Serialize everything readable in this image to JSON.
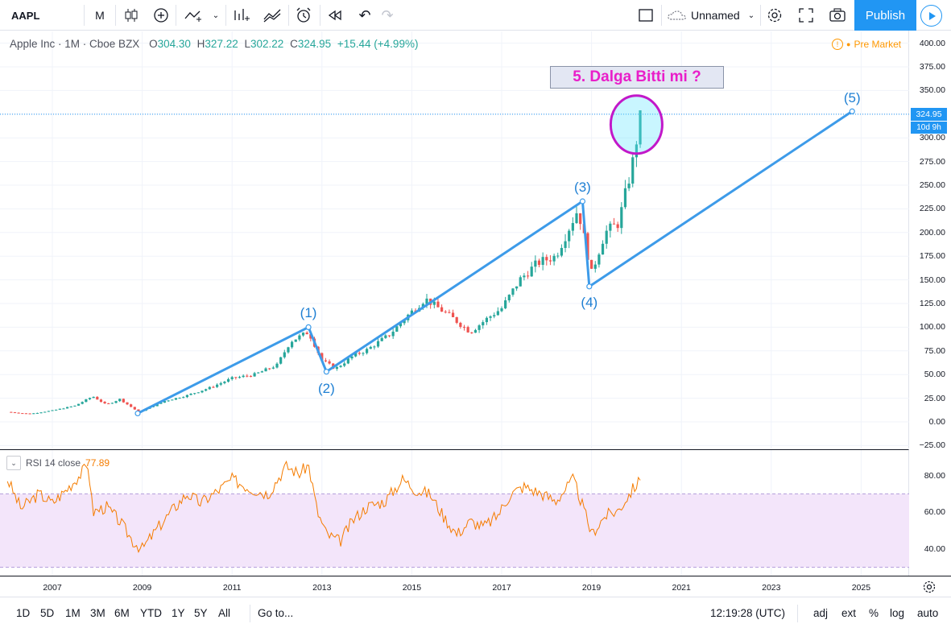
{
  "toolbar": {
    "symbol": "AAPL",
    "interval": "M",
    "layout_name": "Unnamed",
    "publish_label": "Publish",
    "icons": [
      "candles-icon",
      "plus-circle-icon",
      "indicator-icon",
      "chevron-down-icon",
      "bar-chart-icon",
      "compare-icon",
      "alert-icon",
      "replay-icon",
      "undo-icon",
      "redo-icon",
      "layout-square-icon",
      "cloud-icon",
      "gear-icon",
      "fullscreen-icon",
      "camera-icon",
      "play-icon"
    ]
  },
  "legend": {
    "title": "Apple Inc · 1M · Cboe BZX",
    "open_label": "O",
    "open": "304.30",
    "high_label": "H",
    "high": "327.22",
    "low_label": "L",
    "low": "302.22",
    "close_label": "C",
    "close": "324.95",
    "change": "+15.44 (+4.99%)",
    "pre_market": "Pre Market"
  },
  "annotation": {
    "text": "5. Dalga Bitti mi ?",
    "waves": [
      "(1)",
      "(2)",
      "(3)",
      "(4)",
      "(5)"
    ]
  },
  "price_tag": {
    "price": "324.95",
    "countdown": "10d 9h"
  },
  "y_axis": [
    "400.00",
    "375.00",
    "350.00",
    "325.00",
    "300.00",
    "275.00",
    "250.00",
    "225.00",
    "200.00",
    "175.00",
    "150.00",
    "125.00",
    "100.00",
    "75.00",
    "50.00",
    "25.00",
    "0.00",
    "−25.00"
  ],
  "rsi": {
    "label": "RSI 14 close",
    "value": "77.89",
    "y_axis": [
      "80.00",
      "60.00",
      "40.00"
    ],
    "band_top": 70,
    "band_bottom": 30
  },
  "x_axis": [
    "2007",
    "2009",
    "2011",
    "2013",
    "2015",
    "2017",
    "2019",
    "2021",
    "2023",
    "2025"
  ],
  "bottom_bar": {
    "ranges": [
      "1D",
      "5D",
      "1M",
      "3M",
      "6M",
      "YTD",
      "1Y",
      "5Y",
      "All"
    ],
    "goto": "Go to...",
    "clock": "12:19:28 (UTC)",
    "options": [
      "adj",
      "ext",
      "%",
      "log",
      "auto"
    ]
  },
  "colors": {
    "up": "#26a69a",
    "down": "#ef5350",
    "accent": "#2196f3",
    "rsi": "#f57c00",
    "annotation": "#e91ec9"
  },
  "chart_data": {
    "type": "candlestick",
    "x_range": [
      2005.9,
      2026.3
    ],
    "price_range": [
      -30,
      410
    ],
    "monthly_close_approx": [
      [
        2006.0,
        10.5
      ],
      [
        2006.5,
        8.5
      ],
      [
        2007.0,
        12
      ],
      [
        2007.5,
        17
      ],
      [
        2007.9,
        27
      ],
      [
        2008.2,
        18
      ],
      [
        2008.5,
        24
      ],
      [
        2008.9,
        11
      ],
      [
        2009.0,
        12
      ],
      [
        2009.5,
        22
      ],
      [
        2010.0,
        28
      ],
      [
        2010.5,
        36
      ],
      [
        2011.0,
        46
      ],
      [
        2011.5,
        50
      ],
      [
        2012.0,
        60
      ],
      [
        2012.3,
        85
      ],
      [
        2012.7,
        95
      ],
      [
        2013.0,
        65
      ],
      [
        2013.3,
        56
      ],
      [
        2013.7,
        70
      ],
      [
        2014.0,
        76
      ],
      [
        2014.5,
        92
      ],
      [
        2014.9,
        112
      ],
      [
        2015.3,
        130
      ],
      [
        2015.6,
        120
      ],
      [
        2015.9,
        110
      ],
      [
        2016.3,
        95
      ],
      [
        2016.7,
        110
      ],
      [
        2017.0,
        120
      ],
      [
        2017.4,
        150
      ],
      [
        2017.8,
        168
      ],
      [
        2018.2,
        175
      ],
      [
        2018.7,
        225
      ],
      [
        2018.9,
        180
      ],
      [
        2019.0,
        157
      ],
      [
        2019.3,
        200
      ],
      [
        2019.6,
        210
      ],
      [
        2019.9,
        270
      ],
      [
        2020.1,
        325
      ]
    ],
    "rsi_approx": [
      [
        2006.0,
        78
      ],
      [
        2006.3,
        62
      ],
      [
        2006.7,
        70
      ],
      [
        2007.0,
        65
      ],
      [
        2007.3,
        72
      ],
      [
        2007.6,
        80
      ],
      [
        2007.8,
        86
      ],
      [
        2007.9,
        60
      ],
      [
        2008.2,
        63
      ],
      [
        2008.5,
        55
      ],
      [
        2008.8,
        44
      ],
      [
        2009.0,
        40
      ],
      [
        2009.3,
        50
      ],
      [
        2009.7,
        62
      ],
      [
        2010.0,
        70
      ],
      [
        2010.3,
        65
      ],
      [
        2010.7,
        72
      ],
      [
        2011.0,
        78
      ],
      [
        2011.4,
        73
      ],
      [
        2011.8,
        70
      ],
      [
        2012.2,
        85
      ],
      [
        2012.5,
        81
      ],
      [
        2012.7,
        86
      ],
      [
        2012.9,
        60
      ],
      [
        2013.1,
        48
      ],
      [
        2013.4,
        44
      ],
      [
        2013.7,
        56
      ],
      [
        2014.0,
        63
      ],
      [
        2014.4,
        66
      ],
      [
        2014.8,
        78
      ],
      [
        2015.1,
        72
      ],
      [
        2015.4,
        70
      ],
      [
        2015.7,
        58
      ],
      [
        2016.0,
        48
      ],
      [
        2016.3,
        55
      ],
      [
        2016.6,
        52
      ],
      [
        2016.9,
        58
      ],
      [
        2017.2,
        70
      ],
      [
        2017.5,
        74
      ],
      [
        2017.9,
        70
      ],
      [
        2018.2,
        66
      ],
      [
        2018.6,
        78
      ],
      [
        2018.9,
        56
      ],
      [
        2019.0,
        48
      ],
      [
        2019.3,
        58
      ],
      [
        2019.6,
        61
      ],
      [
        2019.9,
        72
      ],
      [
        2020.1,
        77.89
      ]
    ],
    "wave_points": [
      {
        "label": "(1)",
        "x": 2012.7,
        "y": 100
      },
      {
        "label": "(2)",
        "x": 2013.1,
        "y": 53
      },
      {
        "label": "(3)",
        "x": 2018.8,
        "y": 233
      },
      {
        "label": "(4)",
        "x": 2018.95,
        "y": 143
      },
      {
        "label": "(5)",
        "x": 2024.8,
        "y": 328
      }
    ],
    "start_point": {
      "x": 2008.9,
      "y": 9
    }
  }
}
